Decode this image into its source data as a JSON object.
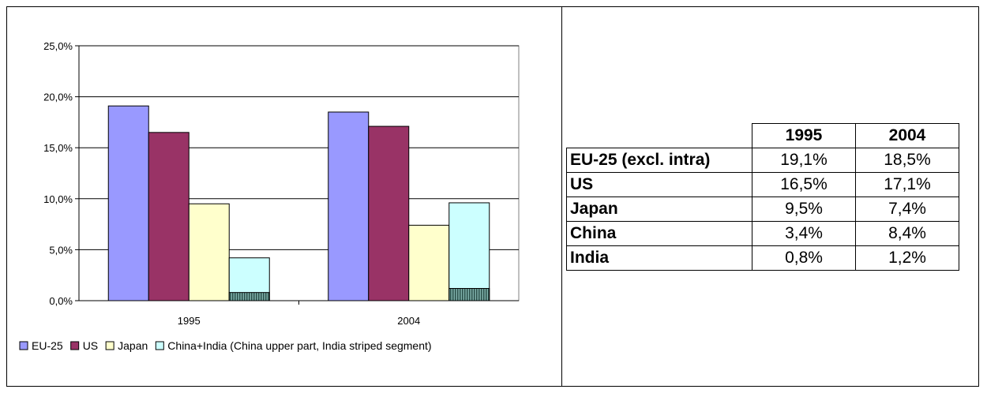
{
  "chart_data": {
    "type": "bar",
    "categories": [
      "1995",
      "2004"
    ],
    "ylim": [
      0,
      25
    ],
    "ytick_values": [
      0,
      5,
      10,
      15,
      20,
      25
    ],
    "ytick_labels": [
      "0,0%",
      "5,0%",
      "10,0%",
      "15,0%",
      "20,0%",
      "25,0%"
    ],
    "series": [
      {
        "name": "EU-25",
        "values": [
          19.1,
          18.5
        ],
        "color": "#9999ff"
      },
      {
        "name": "US",
        "values": [
          16.5,
          17.1
        ],
        "color": "#993366"
      },
      {
        "name": "Japan",
        "values": [
          9.5,
          7.4
        ],
        "color": "#ffffcc"
      },
      {
        "name": "China+India (China upper part, India striped segment)",
        "values": [
          4.2,
          9.6
        ],
        "color": "#ccffff",
        "stacked_parts": {
          "India": [
            0.8,
            1.2
          ],
          "China": [
            3.4,
            8.4
          ]
        }
      }
    ],
    "legend": {
      "position": "bottom"
    },
    "grid": true
  },
  "table": {
    "headers": [
      "",
      "1995",
      "2004"
    ],
    "rows": [
      {
        "label": "EU-25 (excl. intra)",
        "values": [
          "19,1%",
          "18,5%"
        ]
      },
      {
        "label": "US",
        "values": [
          "16,5%",
          "17,1%"
        ]
      },
      {
        "label": "Japan",
        "values": [
          "9,5%",
          "7,4%"
        ]
      },
      {
        "label": "China",
        "values": [
          "3,4%",
          "8,4%"
        ]
      },
      {
        "label": "India",
        "values": [
          "0,8%",
          "1,2%"
        ]
      }
    ]
  }
}
